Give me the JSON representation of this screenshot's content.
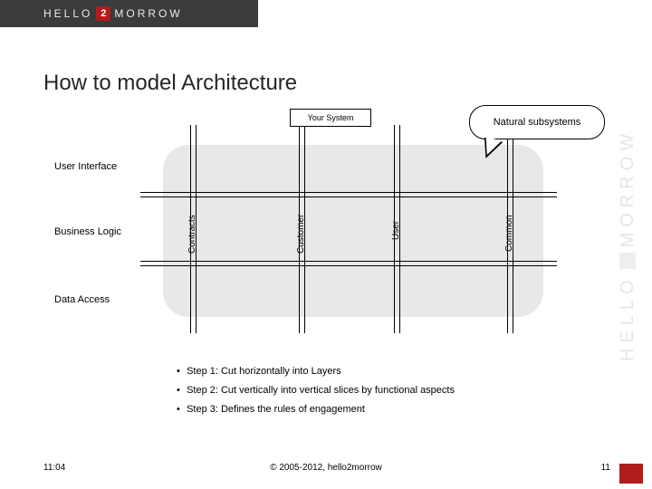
{
  "brand": {
    "left": "HELLO",
    "right": "MORROW",
    "square_text": "2",
    "square_bg": "#b11c1c"
  },
  "title": "How to model Architecture",
  "diagram": {
    "system_tab": "Your System",
    "callout": "Natural subsystems",
    "body_bg": "#e8e8e8",
    "layers": {
      "ui": "User Interface",
      "bl": "Business Logic",
      "da": "Data Access"
    },
    "slices": {
      "contracts": "Contracts",
      "customer": "Customer",
      "user": "User",
      "common": "Common"
    }
  },
  "steps": {
    "s1": "Step 1: Cut horizontally into Layers",
    "s2": "Step 2: Cut vertically into vertical slices by functional aspects",
    "s3": "Step 3: Defines the rules of engagement"
  },
  "footer": {
    "time": "11:04",
    "copyright": "© 2005-2012, hello2morrow",
    "page": "11"
  }
}
